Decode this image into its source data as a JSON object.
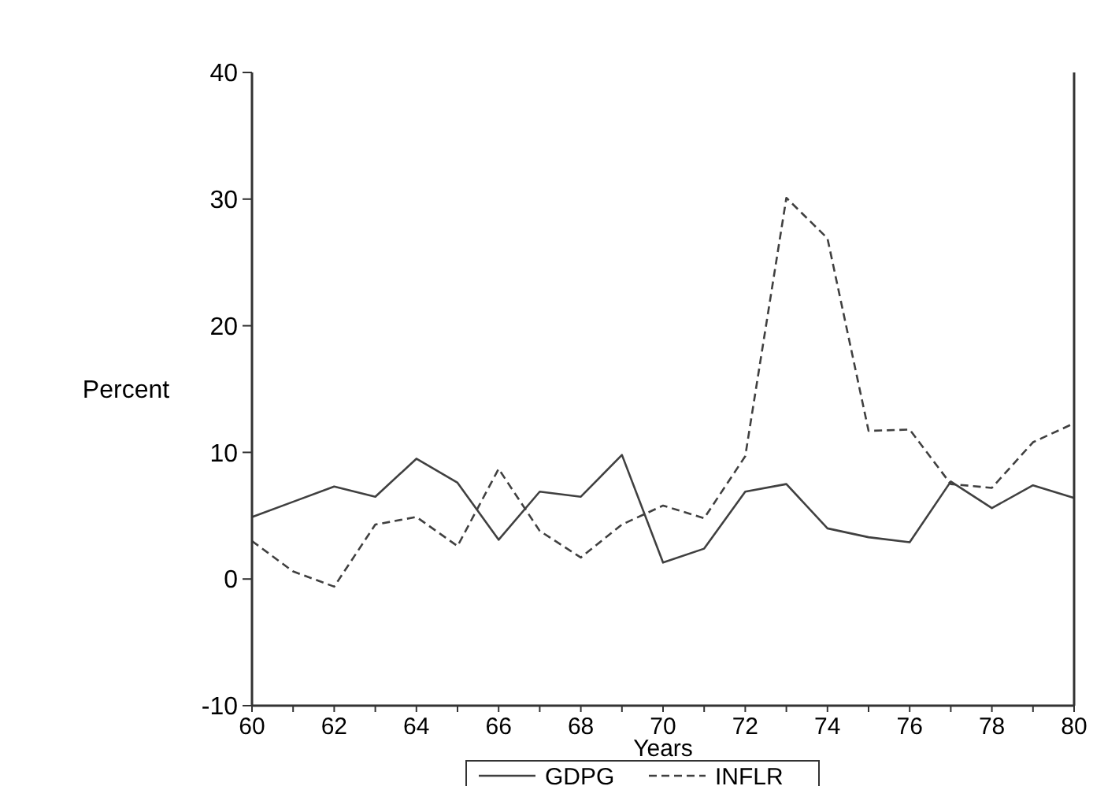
{
  "chart_data": {
    "type": "line",
    "xlabel": "Years",
    "ylabel": "Percent",
    "x": [
      60,
      61,
      62,
      63,
      64,
      65,
      66,
      67,
      68,
      69,
      70,
      71,
      72,
      73,
      74,
      75,
      76,
      77,
      78,
      79,
      80
    ],
    "xlim": [
      60,
      80
    ],
    "xticks": [
      60,
      {
        "value": 61,
        "label": null
      },
      62,
      {
        "value": 63,
        "label": null
      },
      64,
      {
        "value": 65,
        "label": null
      },
      66,
      {
        "value": 67,
        "label": null
      },
      68,
      {
        "value": 69,
        "label": null
      },
      70,
      {
        "value": 71,
        "label": null
      },
      72,
      {
        "value": 73,
        "label": null
      },
      74,
      {
        "value": 75,
        "label": null
      },
      76,
      {
        "value": 77,
        "label": null
      },
      78,
      {
        "value": 79,
        "label": null
      },
      80
    ],
    "ylim": [
      -10,
      40
    ],
    "yticks": [
      -10,
      0,
      10,
      20,
      30,
      40
    ],
    "grid": false,
    "legend": "bottom",
    "marker": "none",
    "series": [
      {
        "name": "GDPG",
        "color": "#404040",
        "line_style": "solid",
        "values": [
          4.9,
          6.1,
          7.3,
          6.5,
          9.5,
          7.6,
          3.1,
          6.9,
          6.5,
          9.8,
          1.3,
          2.4,
          6.9,
          7.5,
          4.0,
          3.3,
          2.9,
          7.7,
          5.6,
          7.4,
          6.4
        ]
      },
      {
        "name": "INFLR",
        "color": "#404040",
        "line_style": "dashed",
        "values": [
          3.0,
          0.6,
          -0.6,
          4.3,
          4.9,
          2.6,
          8.7,
          3.8,
          1.7,
          4.3,
          5.8,
          4.8,
          9.7,
          30.1,
          26.9,
          11.7,
          11.8,
          7.5,
          7.2,
          10.8,
          12.3
        ]
      }
    ]
  }
}
